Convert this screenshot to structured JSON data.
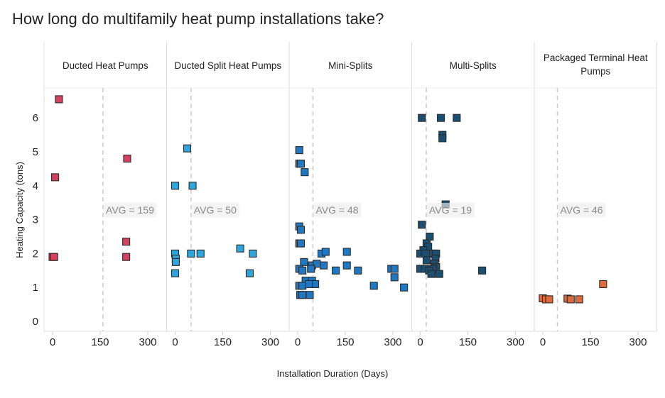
{
  "title": "How long do multifamily heat pump installations take?",
  "chart_data": {
    "type": "scatter",
    "title": "How long do multifamily heat pump installations take?",
    "xlabel": "Installation Duration (Days)",
    "ylabel": "Heating Capacity (tons)",
    "xlim": [
      -20,
      360
    ],
    "ylim": [
      -0.2,
      6.95
    ],
    "xticks": [
      0,
      150,
      300
    ],
    "yticks": [
      0,
      1,
      2,
      3,
      4,
      5,
      6
    ],
    "avg_label_prefix": "AVG = ",
    "facets": [
      {
        "name": "Ducted Heat Pumps",
        "title_lines": [
          "Ducted Heat Pumps"
        ],
        "color": "#d6405e",
        "avg": 159,
        "points": [
          {
            "x": 20,
            "y": 6.55
          },
          {
            "x": 8,
            "y": 4.25
          },
          {
            "x": 235,
            "y": 4.8
          },
          {
            "x": 232,
            "y": 2.35
          },
          {
            "x": 232,
            "y": 1.9
          },
          {
            "x": 0,
            "y": 1.9
          },
          {
            "x": 5,
            "y": 1.9
          }
        ]
      },
      {
        "name": "Ducted Split Heat Pumps",
        "title_lines": [
          "Ducted Split Heat Pumps"
        ],
        "color": "#2ca6dc",
        "avg": 50,
        "points": [
          {
            "x": 38,
            "y": 5.1
          },
          {
            "x": 0,
            "y": 4.0
          },
          {
            "x": 55,
            "y": 4.0
          },
          {
            "x": 0,
            "y": 2.0
          },
          {
            "x": 50,
            "y": 2.0
          },
          {
            "x": 80,
            "y": 2.0
          },
          {
            "x": 205,
            "y": 2.15
          },
          {
            "x": 245,
            "y": 2.0
          },
          {
            "x": 2,
            "y": 1.85
          },
          {
            "x": 2,
            "y": 1.75
          },
          {
            "x": 0,
            "y": 1.42
          },
          {
            "x": 235,
            "y": 1.42
          }
        ]
      },
      {
        "name": "Mini-Splits",
        "title_lines": [
          "Mini-Splits"
        ],
        "color": "#1f78c4",
        "avg": 48,
        "points": [
          {
            "x": 5,
            "y": 5.05
          },
          {
            "x": 5,
            "y": 4.65
          },
          {
            "x": 10,
            "y": 4.65
          },
          {
            "x": 22,
            "y": 4.4
          },
          {
            "x": 5,
            "y": 2.8
          },
          {
            "x": 10,
            "y": 2.7
          },
          {
            "x": 5,
            "y": 2.3
          },
          {
            "x": 10,
            "y": 2.3
          },
          {
            "x": 75,
            "y": 2.0
          },
          {
            "x": 88,
            "y": 2.05
          },
          {
            "x": 155,
            "y": 2.05
          },
          {
            "x": 20,
            "y": 1.75
          },
          {
            "x": 45,
            "y": 1.65
          },
          {
            "x": 60,
            "y": 1.7
          },
          {
            "x": 82,
            "y": 1.65
          },
          {
            "x": 155,
            "y": 1.65
          },
          {
            "x": 190,
            "y": 1.5
          },
          {
            "x": 120,
            "y": 1.5
          },
          {
            "x": 5,
            "y": 1.55
          },
          {
            "x": 15,
            "y": 1.5
          },
          {
            "x": 42,
            "y": 1.55
          },
          {
            "x": 295,
            "y": 1.55
          },
          {
            "x": 305,
            "y": 1.55
          },
          {
            "x": 305,
            "y": 1.3
          },
          {
            "x": 25,
            "y": 1.2
          },
          {
            "x": 45,
            "y": 1.2
          },
          {
            "x": 55,
            "y": 1.1
          },
          {
            "x": 5,
            "y": 1.05
          },
          {
            "x": 15,
            "y": 1.05
          },
          {
            "x": 35,
            "y": 1.1
          },
          {
            "x": 240,
            "y": 1.05
          },
          {
            "x": 335,
            "y": 1.0
          },
          {
            "x": 8,
            "y": 0.78
          },
          {
            "x": 15,
            "y": 0.78
          },
          {
            "x": 38,
            "y": 0.78
          }
        ]
      },
      {
        "name": "Multi-Splits",
        "title_lines": [
          "Multi-Splits"
        ],
        "color": "#1b4f72",
        "avg": 19,
        "points": [
          {
            "x": 5,
            "y": 6.0
          },
          {
            "x": 65,
            "y": 6.0
          },
          {
            "x": 115,
            "y": 6.0
          },
          {
            "x": 70,
            "y": 5.5
          },
          {
            "x": 70,
            "y": 5.4
          },
          {
            "x": 80,
            "y": 3.45
          },
          {
            "x": 5,
            "y": 2.85
          },
          {
            "x": 30,
            "y": 2.5
          },
          {
            "x": 20,
            "y": 2.3
          },
          {
            "x": 25,
            "y": 2.2
          },
          {
            "x": 10,
            "y": 2.1
          },
          {
            "x": 0,
            "y": 2.0
          },
          {
            "x": 15,
            "y": 2.0
          },
          {
            "x": 40,
            "y": 2.0
          },
          {
            "x": 50,
            "y": 2.0
          },
          {
            "x": 48,
            "y": 1.85
          },
          {
            "x": 20,
            "y": 1.8
          },
          {
            "x": 45,
            "y": 1.7
          },
          {
            "x": 50,
            "y": 1.6
          },
          {
            "x": 0,
            "y": 1.55
          },
          {
            "x": 15,
            "y": 1.55
          },
          {
            "x": 40,
            "y": 1.55
          },
          {
            "x": 28,
            "y": 1.5
          },
          {
            "x": 35,
            "y": 1.4
          },
          {
            "x": 60,
            "y": 1.4
          },
          {
            "x": 195,
            "y": 1.5
          }
        ]
      },
      {
        "name": "Packaged Terminal Heat Pumps",
        "title_lines": [
          "Packaged Terminal Heat Pumps"
        ],
        "color": "#e06a3b",
        "avg": 46,
        "points": [
          {
            "x": 0,
            "y": 0.68
          },
          {
            "x": 10,
            "y": 0.65
          },
          {
            "x": 20,
            "y": 0.65
          },
          {
            "x": 78,
            "y": 0.67
          },
          {
            "x": 88,
            "y": 0.65
          },
          {
            "x": 115,
            "y": 0.65
          },
          {
            "x": 190,
            "y": 1.1
          }
        ]
      }
    ],
    "grid": false,
    "legend": "none"
  }
}
